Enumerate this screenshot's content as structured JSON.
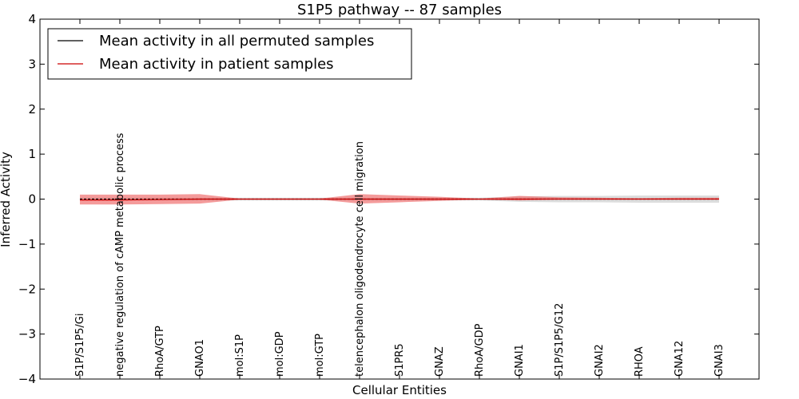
{
  "chart_data": {
    "type": "line",
    "title": "S1P5 pathway -- 87 samples",
    "xlabel": "Cellular Entities",
    "ylabel": "Inferred Activity",
    "ylim": [
      -4,
      4
    ],
    "yticks": [
      -4,
      -3,
      -2,
      -1,
      0,
      1,
      2,
      3,
      4
    ],
    "ytick_labels": [
      "−4",
      "−3",
      "−2",
      "−1",
      "0",
      "1",
      "2",
      "3",
      "4"
    ],
    "grid": false,
    "legend_position": "top-left",
    "categories": [
      "S1P/S1P5/Gi",
      "negative regulation of cAMP metabolic process",
      "RhoA/GTP",
      "GNAO1",
      "mol:S1P",
      "mol:GDP",
      "mol:GTP",
      "telencephalon oligodendrocyte cell migration",
      "S1PR5",
      "GNAZ",
      "RhoA/GDP",
      "GNAI1",
      "S1P/S1P5/G12",
      "GNAI2",
      "RHOA",
      "GNA12",
      "GNAI3"
    ],
    "series": [
      {
        "name": "Mean activity in all permuted samples",
        "color": "#000000",
        "values": [
          0.0,
          0.0,
          0.0,
          0.0,
          0.0,
          0.0,
          0.0,
          0.0,
          0.0,
          0.0,
          0.0,
          0.0,
          0.0,
          0.0,
          0.0,
          0.0,
          0.0
        ],
        "band_lower": [
          -0.03,
          -0.03,
          -0.03,
          -0.03,
          -0.03,
          -0.03,
          -0.03,
          -0.03,
          -0.03,
          -0.03,
          -0.03,
          -0.06,
          -0.07,
          -0.07,
          -0.08,
          -0.08,
          -0.08
        ],
        "band_upper": [
          0.03,
          0.03,
          0.03,
          0.03,
          0.03,
          0.03,
          0.03,
          0.03,
          0.03,
          0.03,
          0.03,
          0.06,
          0.07,
          0.07,
          0.08,
          0.08,
          0.08
        ],
        "band_color": "#bfbfbf"
      },
      {
        "name": "Mean activity in patient samples",
        "color": "#cc0000",
        "values": [
          -0.02,
          -0.02,
          -0.01,
          0.0,
          0.0,
          0.0,
          0.0,
          0.0,
          0.0,
          0.0,
          0.0,
          0.0,
          0.0,
          0.0,
          0.0,
          0.0,
          0.0
        ],
        "band_lower": [
          -0.12,
          -0.12,
          -0.11,
          -0.1,
          -0.01,
          -0.01,
          -0.01,
          -0.1,
          -0.07,
          -0.04,
          -0.01,
          -0.03,
          -0.01,
          -0.01,
          -0.01,
          -0.01,
          -0.01
        ],
        "band_upper": [
          0.1,
          0.1,
          0.1,
          0.11,
          0.01,
          0.01,
          0.01,
          0.11,
          0.08,
          0.05,
          0.01,
          0.07,
          0.04,
          0.03,
          0.02,
          0.03,
          0.03
        ],
        "band_color": "#ee6666"
      }
    ]
  }
}
